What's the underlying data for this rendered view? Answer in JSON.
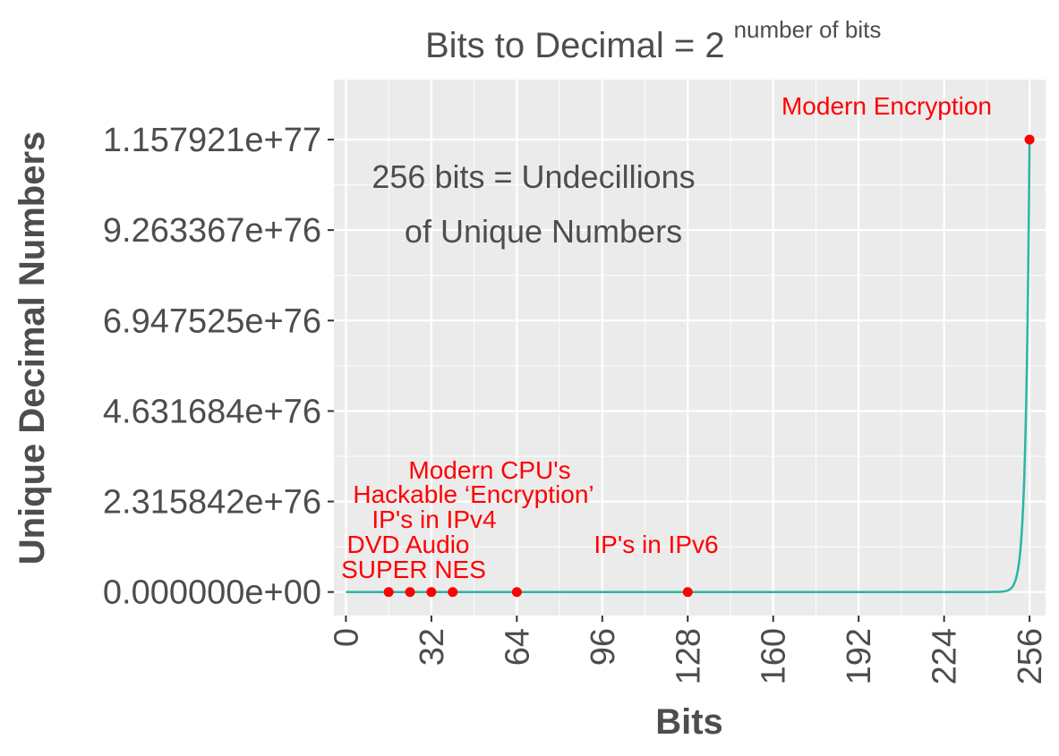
{
  "chart_data": {
    "type": "line",
    "title": "Bits to Decimal = 2",
    "title_superscript": "number of bits",
    "xlabel": "Bits",
    "ylabel": "Unique Decimal Numbers",
    "xlim": [
      0,
      256
    ],
    "ylim": [
      0,
      1.157921e+77
    ],
    "x_ticks": [
      0,
      32,
      64,
      96,
      128,
      160,
      192,
      224,
      256
    ],
    "x_tick_labels": [
      "0",
      "32",
      "64",
      "96",
      "128",
      "160",
      "192",
      "224",
      "256"
    ],
    "y_ticks": [
      0,
      2.315842e+76,
      4.631684e+76,
      6.947525e+76,
      9.263367e+76,
      1.157921e+77
    ],
    "y_tick_labels": [
      "0.000000e+00",
      "2.315842e+76",
      "4.631684e+76",
      "6.947525e+76",
      "9.263367e+76",
      "1.157921e+77"
    ],
    "grid": true,
    "series": [
      {
        "formula": "2^x",
        "x_range": [
          0,
          256
        ],
        "color": "#2ab5a5"
      }
    ],
    "highlighted_points": [
      {
        "label": "SUPER NES",
        "x": 16,
        "y": 65536
      },
      {
        "label": "DVD Audio",
        "x": 24,
        "y": 16777216
      },
      {
        "label": "IP's in IPv4",
        "x": 32,
        "y": 4294967296
      },
      {
        "label": "Hackable ‘Encryption’",
        "x": 40,
        "y": 1099511627776
      },
      {
        "label": "Modern CPU's",
        "x": 64,
        "y": 1.8446744e+19
      },
      {
        "label": "IP's in IPv6",
        "x": 128,
        "y": 3.4028237e+38
      },
      {
        "label": "Modern Encryption",
        "x": 256,
        "y": 1.157921e+77
      }
    ],
    "annotation": [
      "256 bits =  Undecillions",
      "of Unique Numbers"
    ],
    "colors": {
      "panel": "#ebebeb",
      "grid": "#ffffff",
      "line": "#2ab5a5",
      "points": "#ff0000",
      "text": "#4d4d4d"
    }
  }
}
